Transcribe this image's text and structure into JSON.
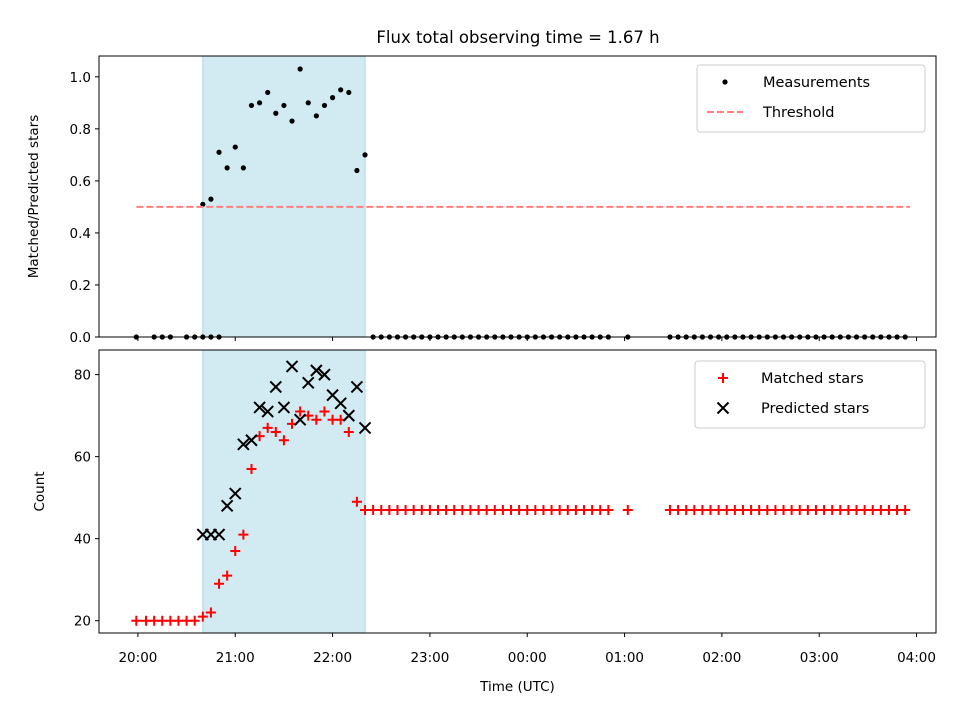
{
  "figure": {
    "title": "Flux total observing time = 1.67 h"
  },
  "chart_data": [
    {
      "type": "scatter",
      "panel": "top",
      "ylabel": "Matched/Predicted stars",
      "xlabel": "",
      "x_unit": "time (UTC)",
      "xlim": [
        "19:36",
        "04:12"
      ],
      "ylim": [
        0,
        1.08
      ],
      "yticks": [
        0.0,
        0.2,
        0.4,
        0.6,
        0.8,
        1.0
      ],
      "ytick_labels": [
        "0.0",
        "0.2",
        "0.4",
        "0.6",
        "0.8",
        "1.0"
      ],
      "grid": false,
      "legend_position": "top-right",
      "shaded_span": {
        "start": "20:40",
        "end": "22:20",
        "color": "#add8e6"
      },
      "series": [
        {
          "name": "Measurements",
          "kind": "scatter",
          "marker": "dot",
          "color": "#000000",
          "points": [
            [
              "19:59",
              0
            ],
            [
              "20:10",
              0
            ],
            [
              "20:15",
              0
            ],
            [
              "20:20",
              0
            ],
            [
              "20:30",
              0
            ],
            [
              "20:35",
              0
            ],
            [
              "20:40",
              0
            ],
            [
              "20:45",
              0
            ],
            [
              "20:50",
              0
            ],
            [
              "20:40",
              0.51
            ],
            [
              "20:45",
              0.53
            ],
            [
              "20:50",
              0.71
            ],
            [
              "20:55",
              0.65
            ],
            [
              "21:00",
              0.73
            ],
            [
              "21:05",
              0.65
            ],
            [
              "21:10",
              0.89
            ],
            [
              "21:15",
              0.9
            ],
            [
              "21:20",
              0.94
            ],
            [
              "21:25",
              0.86
            ],
            [
              "21:30",
              0.89
            ],
            [
              "21:35",
              0.83
            ],
            [
              "21:40",
              1.03
            ],
            [
              "21:45",
              0.9
            ],
            [
              "21:50",
              0.85
            ],
            [
              "21:55",
              0.89
            ],
            [
              "22:00",
              0.92
            ],
            [
              "22:05",
              0.95
            ],
            [
              "22:10",
              0.94
            ],
            [
              "22:15",
              0.64
            ],
            [
              "22:20",
              0.7
            ],
            [
              "22:25",
              0
            ],
            [
              "22:30",
              0
            ],
            [
              "22:35",
              0
            ],
            [
              "22:40",
              0
            ],
            [
              "22:45",
              0
            ],
            [
              "22:50",
              0
            ],
            [
              "22:55",
              0
            ],
            [
              "23:00",
              0
            ],
            [
              "23:05",
              0
            ],
            [
              "23:10",
              0
            ],
            [
              "23:15",
              0
            ],
            [
              "23:20",
              0
            ],
            [
              "23:25",
              0
            ],
            [
              "23:30",
              0
            ],
            [
              "23:35",
              0
            ],
            [
              "23:40",
              0
            ],
            [
              "23:45",
              0
            ],
            [
              "23:50",
              0
            ],
            [
              "23:55",
              0
            ],
            [
              "00:00",
              0
            ],
            [
              "00:05",
              0
            ],
            [
              "00:10",
              0
            ],
            [
              "00:15",
              0
            ],
            [
              "00:20",
              0
            ],
            [
              "00:25",
              0
            ],
            [
              "00:30",
              0
            ],
            [
              "00:35",
              0
            ],
            [
              "00:40",
              0
            ],
            [
              "00:45",
              0
            ],
            [
              "00:50",
              0
            ],
            [
              "01:02",
              0
            ],
            [
              "01:28",
              0
            ],
            [
              "01:33",
              0
            ],
            [
              "01:38",
              0
            ],
            [
              "01:43",
              0
            ],
            [
              "01:48",
              0
            ],
            [
              "01:53",
              0
            ],
            [
              "01:58",
              0
            ],
            [
              "02:03",
              0
            ],
            [
              "02:08",
              0
            ],
            [
              "02:13",
              0
            ],
            [
              "02:18",
              0
            ],
            [
              "02:23",
              0
            ],
            [
              "02:28",
              0
            ],
            [
              "02:33",
              0
            ],
            [
              "02:38",
              0
            ],
            [
              "02:43",
              0
            ],
            [
              "02:48",
              0
            ],
            [
              "02:53",
              0
            ],
            [
              "02:58",
              0
            ],
            [
              "03:03",
              0
            ],
            [
              "03:08",
              0
            ],
            [
              "03:13",
              0
            ],
            [
              "03:18",
              0
            ],
            [
              "03:23",
              0
            ],
            [
              "03:28",
              0
            ],
            [
              "03:33",
              0
            ],
            [
              "03:38",
              0
            ],
            [
              "03:43",
              0
            ],
            [
              "03:48",
              0
            ],
            [
              "03:53",
              0
            ]
          ]
        },
        {
          "name": "Threshold",
          "kind": "dashed-line",
          "color": "#ff7f7f",
          "points": [
            [
              "19:59",
              0.5
            ],
            [
              "03:56",
              0.5
            ]
          ]
        }
      ]
    },
    {
      "type": "scatter",
      "panel": "bottom",
      "ylabel": "Count",
      "xlabel": "Time (UTC)",
      "ylim": [
        17,
        86
      ],
      "yticks": [
        20,
        40,
        60,
        80
      ],
      "ytick_labels": [
        "20",
        "40",
        "60",
        "80"
      ],
      "xticks": [
        "20:00",
        "21:00",
        "22:00",
        "23:00",
        "00:00",
        "01:00",
        "02:00",
        "03:00",
        "04:00"
      ],
      "grid": false,
      "legend_position": "top-right",
      "shaded_span": {
        "start": "20:40",
        "end": "22:20",
        "color": "#add8e6"
      },
      "series": [
        {
          "name": "Matched stars",
          "kind": "scatter",
          "marker": "plus",
          "color": "#ff0000",
          "points": [
            [
              "19:59",
              20
            ],
            [
              "20:05",
              20
            ],
            [
              "20:10",
              20
            ],
            [
              "20:15",
              20
            ],
            [
              "20:20",
              20
            ],
            [
              "20:25",
              20
            ],
            [
              "20:30",
              20
            ],
            [
              "20:35",
              20
            ],
            [
              "20:40",
              21
            ],
            [
              "20:45",
              22
            ],
            [
              "20:50",
              29
            ],
            [
              "20:55",
              31
            ],
            [
              "21:00",
              37
            ],
            [
              "21:05",
              41
            ],
            [
              "21:10",
              57
            ],
            [
              "21:15",
              65
            ],
            [
              "21:20",
              67
            ],
            [
              "21:25",
              66
            ],
            [
              "21:30",
              64
            ],
            [
              "21:35",
              68
            ],
            [
              "21:40",
              71
            ],
            [
              "21:45",
              70
            ],
            [
              "21:50",
              69
            ],
            [
              "21:55",
              71
            ],
            [
              "22:00",
              69
            ],
            [
              "22:05",
              69
            ],
            [
              "22:10",
              66
            ],
            [
              "22:15",
              49
            ],
            [
              "22:20",
              47
            ],
            [
              "22:25",
              47
            ],
            [
              "22:30",
              47
            ],
            [
              "22:35",
              47
            ],
            [
              "22:40",
              47
            ],
            [
              "22:45",
              47
            ],
            [
              "22:50",
              47
            ],
            [
              "22:55",
              47
            ],
            [
              "23:00",
              47
            ],
            [
              "23:05",
              47
            ],
            [
              "23:10",
              47
            ],
            [
              "23:15",
              47
            ],
            [
              "23:20",
              47
            ],
            [
              "23:25",
              47
            ],
            [
              "23:30",
              47
            ],
            [
              "23:35",
              47
            ],
            [
              "23:40",
              47
            ],
            [
              "23:45",
              47
            ],
            [
              "23:50",
              47
            ],
            [
              "23:55",
              47
            ],
            [
              "00:00",
              47
            ],
            [
              "00:05",
              47
            ],
            [
              "00:10",
              47
            ],
            [
              "00:15",
              47
            ],
            [
              "00:20",
              47
            ],
            [
              "00:25",
              47
            ],
            [
              "00:30",
              47
            ],
            [
              "00:35",
              47
            ],
            [
              "00:40",
              47
            ],
            [
              "00:45",
              47
            ],
            [
              "00:50",
              47
            ],
            [
              "01:02",
              47
            ],
            [
              "01:28",
              47
            ],
            [
              "01:33",
              47
            ],
            [
              "01:38",
              47
            ],
            [
              "01:43",
              47
            ],
            [
              "01:48",
              47
            ],
            [
              "01:53",
              47
            ],
            [
              "01:58",
              47
            ],
            [
              "02:03",
              47
            ],
            [
              "02:08",
              47
            ],
            [
              "02:13",
              47
            ],
            [
              "02:18",
              47
            ],
            [
              "02:23",
              47
            ],
            [
              "02:28",
              47
            ],
            [
              "02:33",
              47
            ],
            [
              "02:38",
              47
            ],
            [
              "02:43",
              47
            ],
            [
              "02:48",
              47
            ],
            [
              "02:53",
              47
            ],
            [
              "02:58",
              47
            ],
            [
              "03:03",
              47
            ],
            [
              "03:08",
              47
            ],
            [
              "03:13",
              47
            ],
            [
              "03:18",
              47
            ],
            [
              "03:23",
              47
            ],
            [
              "03:28",
              47
            ],
            [
              "03:33",
              47
            ],
            [
              "03:38",
              47
            ],
            [
              "03:43",
              47
            ],
            [
              "03:48",
              47
            ],
            [
              "03:53",
              47
            ]
          ]
        },
        {
          "name": "Predicted stars",
          "kind": "scatter",
          "marker": "x",
          "color": "#000000",
          "points": [
            [
              "20:40",
              41
            ],
            [
              "20:45",
              41
            ],
            [
              "20:50",
              41
            ],
            [
              "20:55",
              48
            ],
            [
              "21:00",
              51
            ],
            [
              "21:05",
              63
            ],
            [
              "21:10",
              64
            ],
            [
              "21:15",
              72
            ],
            [
              "21:20",
              71
            ],
            [
              "21:25",
              77
            ],
            [
              "21:30",
              72
            ],
            [
              "21:35",
              82
            ],
            [
              "21:40",
              69
            ],
            [
              "21:45",
              78
            ],
            [
              "21:50",
              81
            ],
            [
              "21:55",
              80
            ],
            [
              "22:00",
              75
            ],
            [
              "22:05",
              73
            ],
            [
              "22:10",
              70
            ],
            [
              "22:15",
              77
            ],
            [
              "22:20",
              67
            ]
          ]
        }
      ]
    }
  ]
}
